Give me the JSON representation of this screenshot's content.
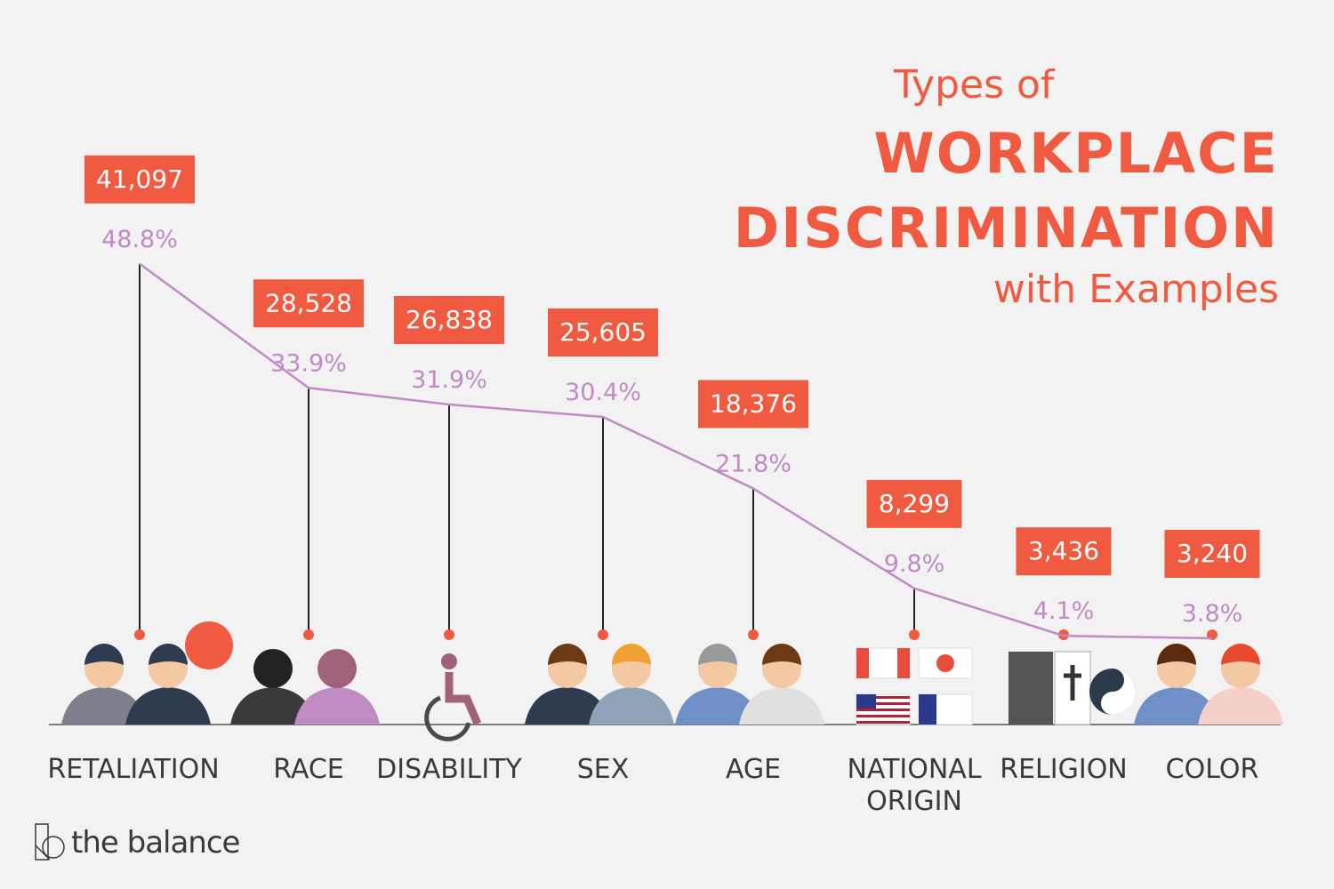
{
  "title": {
    "line1": "Types of",
    "line2": "WORKPLACE",
    "line3": "DISCRIMINATION",
    "line4": "with Examples"
  },
  "brand": "the balance",
  "colors": {
    "accent": "#f05a40",
    "line": "#c08ac4",
    "text": "#3a3a3a",
    "background": "#f2f2f2"
  },
  "chart_data": {
    "type": "line",
    "categories": [
      "RETALIATION",
      "RACE",
      "DISABILITY",
      "SEX",
      "AGE",
      "NATIONAL ORIGIN",
      "RELIGION",
      "COLOR"
    ],
    "category_lines": [
      [
        "RETALIATION"
      ],
      [
        "RACE"
      ],
      [
        "DISABILITY"
      ],
      [
        "SEX"
      ],
      [
        "AGE"
      ],
      [
        "NATIONAL",
        "ORIGIN"
      ],
      [
        "RELIGION"
      ],
      [
        "COLOR"
      ]
    ],
    "counts": [
      41097,
      28528,
      26838,
      25605,
      18376,
      8299,
      3436,
      3240
    ],
    "count_labels": [
      "41,097",
      "28,528",
      "26,838",
      "25,605",
      "18,376",
      "8,299",
      "3,436",
      "3,240"
    ],
    "percent": [
      48.8,
      33.9,
      31.9,
      30.4,
      21.8,
      9.8,
      4.1,
      3.8
    ],
    "percent_labels": [
      "48.8%",
      "33.9%",
      "31.9%",
      "30.4%",
      "21.8%",
      "9.8%",
      "4.1%",
      "3.8%"
    ],
    "icons": [
      "people-talking-icon",
      "veiled-women-icon",
      "wheelchair-icon",
      "man-woman-icon",
      "old-young-men-icon",
      "flags-icon",
      "religion-symbols-icon",
      "people-icon"
    ]
  }
}
